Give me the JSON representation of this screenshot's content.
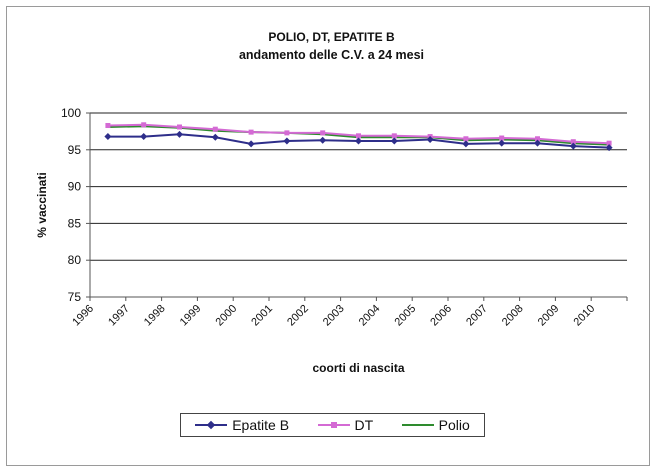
{
  "chart_data": {
    "type": "line",
    "title": "POLIO, DT, EPATITE B",
    "subtitle": "andamento delle C.V. a 24 mesi",
    "xlabel": "coorti di nascita",
    "ylabel": "% vaccinati",
    "categories": [
      "1996",
      "1997",
      "1998",
      "1999",
      "2000",
      "2001",
      "2002",
      "2003",
      "2004",
      "2005",
      "2006",
      "2007",
      "2008",
      "2009",
      "2010"
    ],
    "ylim": [
      75,
      100
    ],
    "yticks": [
      75,
      80,
      85,
      90,
      95,
      100
    ],
    "grid": true,
    "legend_position": "bottom",
    "series": [
      {
        "name": "Epatite B",
        "color": "#2e2e8a",
        "marker": "diamond",
        "values": [
          96.8,
          96.8,
          97.1,
          96.7,
          95.8,
          96.2,
          96.3,
          96.2,
          96.2,
          96.4,
          95.8,
          95.9,
          95.9,
          95.5,
          95.3
        ]
      },
      {
        "name": "DT",
        "color": "#d46ad4",
        "marker": "square",
        "values": [
          98.3,
          98.4,
          98.1,
          97.8,
          97.4,
          97.3,
          97.3,
          96.9,
          96.9,
          96.8,
          96.5,
          96.6,
          96.5,
          96.1,
          95.9
        ]
      },
      {
        "name": "Polio",
        "color": "#2e8b2e",
        "marker": "none",
        "values": [
          98.1,
          98.2,
          98.0,
          97.6,
          97.4,
          97.3,
          97.1,
          96.7,
          96.7,
          96.7,
          96.3,
          96.4,
          96.3,
          95.9,
          95.7
        ]
      }
    ]
  }
}
